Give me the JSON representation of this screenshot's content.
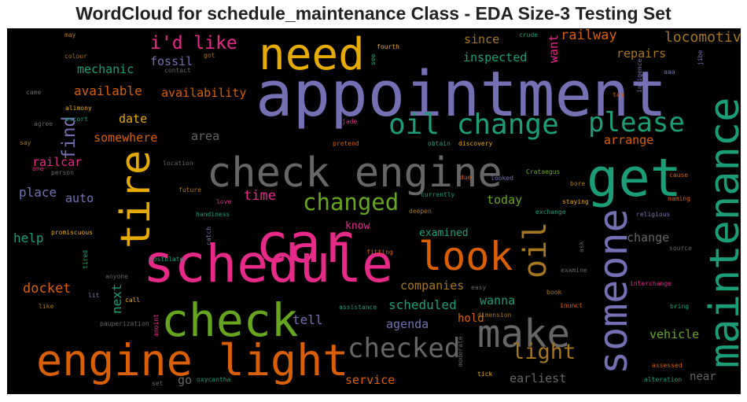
{
  "title": "WordCloud for schedule_maintenance Class - EDA Size-3 Testing Set",
  "palette": {
    "background": "#000000",
    "purple": "#7570b3",
    "teal": "#1b9e77",
    "orange": "#d95f02",
    "pink": "#e7298a",
    "green": "#66a61e",
    "gold": "#e6ab02",
    "brown": "#a6761d",
    "gray": "#666666"
  },
  "words": [
    {
      "text": "appointment",
      "color": "#7570b3"
    },
    {
      "text": "check engine",
      "color": "#666666"
    },
    {
      "text": "schedule",
      "color": "#e7298a"
    },
    {
      "text": "car",
      "color": "#e7298a"
    },
    {
      "text": "engine light",
      "color": "#d95f02"
    },
    {
      "text": "maintenance",
      "color": "#1b9e77"
    },
    {
      "text": "get",
      "color": "#1b9e77"
    },
    {
      "text": "someone",
      "color": "#7570b3"
    },
    {
      "text": "check",
      "color": "#66a61e"
    },
    {
      "text": "need",
      "color": "#e6ab02"
    },
    {
      "text": "tire",
      "color": "#e6ab02"
    },
    {
      "text": "look",
      "color": "#d95f02"
    },
    {
      "text": "make",
      "color": "#666666"
    },
    {
      "text": "oil change",
      "color": "#1b9e77"
    },
    {
      "text": "please",
      "color": "#1b9e77"
    },
    {
      "text": "oil",
      "color": "#a6761d"
    },
    {
      "text": "checked",
      "color": "#666666"
    },
    {
      "text": "changed",
      "color": "#66a61e"
    },
    {
      "text": "light",
      "color": "#a6761d"
    },
    {
      "text": "find",
      "color": "#7570b3"
    },
    {
      "text": "i'd like",
      "color": "#e7298a"
    },
    {
      "text": "locomotive",
      "color": "#a6761d"
    },
    {
      "text": "railway",
      "color": "#d95f02"
    },
    {
      "text": "since",
      "color": "#a6761d"
    },
    {
      "text": "inspected",
      "color": "#1b9e77"
    },
    {
      "text": "want",
      "color": "#e7298a"
    },
    {
      "text": "repairs",
      "color": "#a6761d"
    },
    {
      "text": "fossil",
      "color": "#7570b3"
    },
    {
      "text": "mechanic",
      "color": "#1b9e77"
    },
    {
      "text": "available",
      "color": "#d95f02"
    },
    {
      "text": "availability",
      "color": "#d95f02"
    },
    {
      "text": "date",
      "color": "#e6ab02"
    },
    {
      "text": "somewhere",
      "color": "#d95f02"
    },
    {
      "text": "area",
      "color": "#666666"
    },
    {
      "text": "arrange",
      "color": "#d95f02"
    },
    {
      "text": "railcar",
      "color": "#e7298a"
    },
    {
      "text": "place",
      "color": "#7570b3"
    },
    {
      "text": "auto",
      "color": "#7570b3"
    },
    {
      "text": "time",
      "color": "#e7298a"
    },
    {
      "text": "today",
      "color": "#66a61e"
    },
    {
      "text": "help",
      "color": "#1b9e77"
    },
    {
      "text": "know",
      "color": "#e7298a"
    },
    {
      "text": "examined",
      "color": "#1b9e77"
    },
    {
      "text": "change",
      "color": "#666666"
    },
    {
      "text": "docket",
      "color": "#d95f02"
    },
    {
      "text": "next",
      "color": "#1b9e77"
    },
    {
      "text": "companies",
      "color": "#a6761d"
    },
    {
      "text": "wanna",
      "color": "#1b9e77"
    },
    {
      "text": "scheduled",
      "color": "#1b9e77"
    },
    {
      "text": "tell",
      "color": "#7570b3"
    },
    {
      "text": "agenda",
      "color": "#7570b3"
    },
    {
      "text": "hold",
      "color": "#d95f02"
    },
    {
      "text": "vehicle",
      "color": "#66a61e"
    },
    {
      "text": "go",
      "color": "#666666"
    },
    {
      "text": "service",
      "color": "#d95f02"
    },
    {
      "text": "earliest",
      "color": "#666666"
    },
    {
      "text": "near",
      "color": "#666666"
    },
    {
      "text": "may",
      "color": "#a6761d"
    },
    {
      "text": "colour",
      "color": "#a6761d"
    },
    {
      "text": "came",
      "color": "#666666"
    },
    {
      "text": "alimony",
      "color": "#e6ab02"
    },
    {
      "text": "escort",
      "color": "#1b9e77"
    },
    {
      "text": "agree",
      "color": "#666666"
    },
    {
      "text": "say",
      "color": "#a6761d"
    },
    {
      "text": "one",
      "color": "#e7298a"
    },
    {
      "text": "person",
      "color": "#666666"
    },
    {
      "text": "got",
      "color": "#a6761d"
    },
    {
      "text": "contact",
      "color": "#666666"
    },
    {
      "text": "see",
      "color": "#1b9e77"
    },
    {
      "text": "fourth",
      "color": "#e6ab02"
    },
    {
      "text": "crude",
      "color": "#1b9e77"
    },
    {
      "text": "jibe",
      "color": "#7570b3"
    },
    {
      "text": "aaa",
      "color": "#7570b3"
    },
    {
      "text": "indigence",
      "color": "#7570b3"
    },
    {
      "text": "tab",
      "color": "#d95f02"
    },
    {
      "text": "jade",
      "color": "#e7298a"
    },
    {
      "text": "pretend",
      "color": "#d95f02"
    },
    {
      "text": "obtain",
      "color": "#1b9e77"
    },
    {
      "text": "discovery",
      "color": "#e6ab02"
    },
    {
      "text": "location",
      "color": "#666666"
    },
    {
      "text": "due",
      "color": "#d95f02"
    },
    {
      "text": "looked",
      "color": "#7570b3"
    },
    {
      "text": "Crataegus",
      "color": "#66a61e"
    },
    {
      "text": "cause",
      "color": "#d95f02"
    },
    {
      "text": "future",
      "color": "#a6761d"
    },
    {
      "text": "love",
      "color": "#e7298a"
    },
    {
      "text": "handiness",
      "color": "#1b9e77"
    },
    {
      "text": "currently",
      "color": "#1b9e77"
    },
    {
      "text": "deepen",
      "color": "#a6761d"
    },
    {
      "text": "staying",
      "color": "#e6ab02"
    },
    {
      "text": "bore",
      "color": "#a6761d"
    },
    {
      "text": "exchange",
      "color": "#1b9e77"
    },
    {
      "text": "naming",
      "color": "#d95f02"
    },
    {
      "text": "religious",
      "color": "#7570b3"
    },
    {
      "text": "catch",
      "color": "#7570b3"
    },
    {
      "text": "promiscuous",
      "color": "#e6ab02"
    },
    {
      "text": "postulate",
      "color": "#1b9e77"
    },
    {
      "text": "fitting",
      "color": "#d95f02"
    },
    {
      "text": "ask",
      "color": "#666666"
    },
    {
      "text": "source",
      "color": "#666666"
    },
    {
      "text": "tired",
      "color": "#1b9e77"
    },
    {
      "text": "anyone",
      "color": "#666666"
    },
    {
      "text": "lit",
      "color": "#7570b3"
    },
    {
      "text": "call",
      "color": "#e6ab02"
    },
    {
      "text": "like",
      "color": "#a6761d"
    },
    {
      "text": "easy",
      "color": "#666666"
    },
    {
      "text": "examine",
      "color": "#666666"
    },
    {
      "text": "interchange",
      "color": "#e7298a"
    },
    {
      "text": "book",
      "color": "#a6761d"
    },
    {
      "text": "inunct",
      "color": "#d95f02"
    },
    {
      "text": "bring",
      "color": "#1b9e77"
    },
    {
      "text": "assistance",
      "color": "#1b9e77"
    },
    {
      "text": "dimension",
      "color": "#a6761d"
    },
    {
      "text": "pauperization",
      "color": "#666666"
    },
    {
      "text": "anoint",
      "color": "#e7298a"
    },
    {
      "text": "moderate",
      "color": "#666666"
    },
    {
      "text": "assessed",
      "color": "#d95f02"
    },
    {
      "text": "tick",
      "color": "#e6ab02"
    },
    {
      "text": "alteration",
      "color": "#1b9e77"
    },
    {
      "text": "set",
      "color": "#666666"
    },
    {
      "text": "oxycantha",
      "color": "#1b9e77"
    }
  ]
}
